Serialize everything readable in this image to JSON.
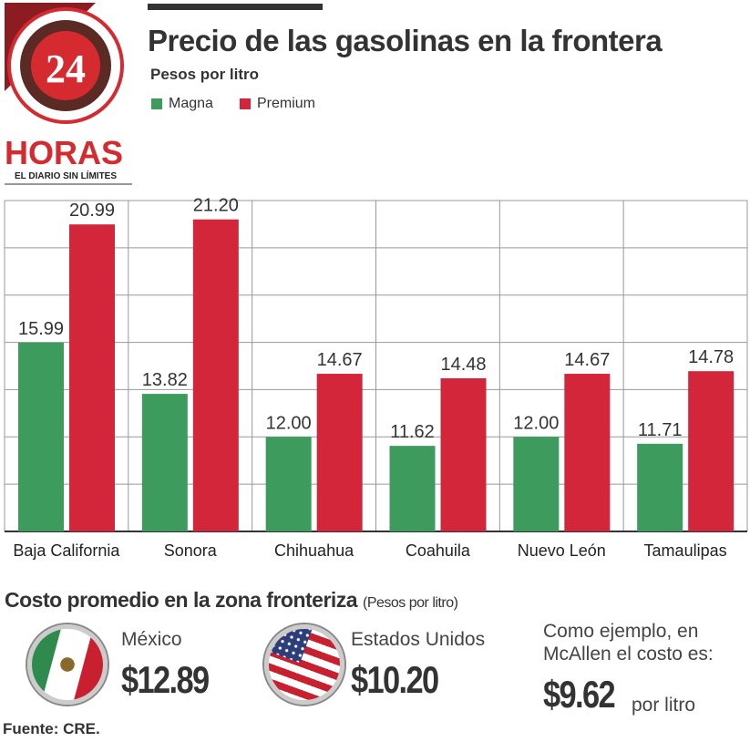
{
  "logo": {
    "number": "24",
    "name": "HORAS",
    "tagline": "EL DIARIO SIN LÍMITES"
  },
  "header": {
    "title": "Precio de las gasolinas en la frontera",
    "subtitle": "Pesos por litro"
  },
  "colors": {
    "magna": "#3d9b5e",
    "premium": "#d3263a"
  },
  "chart_data": {
    "type": "bar",
    "title": "Precio de las gasolinas en la frontera",
    "ylabel": "Pesos por litro",
    "ylim": [
      8,
      22
    ],
    "grid": true,
    "gridstep": 2,
    "legend": "top-left",
    "categories": [
      "Baja California",
      "Sonora",
      "Chihuahua",
      "Coahuila",
      "Nuevo León",
      "Tamaulipas"
    ],
    "series": [
      {
        "name": "Magna",
        "values": [
          15.99,
          13.82,
          12.0,
          11.62,
          12.0,
          11.71
        ],
        "labels": [
          "15.99",
          "13.82",
          "12.00",
          "11.62",
          "12.00",
          "11.71"
        ]
      },
      {
        "name": "Premium",
        "values": [
          20.99,
          21.2,
          14.67,
          14.48,
          14.67,
          14.78
        ],
        "labels": [
          "20.99",
          "21.20",
          "14.67",
          "14.48",
          "14.67",
          "14.78"
        ]
      }
    ]
  },
  "summary": {
    "title": "Costo promedio en la zona fronteriza",
    "unit": "(Pesos por litro)",
    "mexico": {
      "label": "México",
      "price": "$12.89"
    },
    "usa": {
      "label": "Estados Unidos",
      "price": "$10.20"
    },
    "example": {
      "text1": "Como ejemplo, en",
      "text2": "McAllen el costo es:",
      "price": "$9.62",
      "unit": "por litro"
    }
  },
  "source": "Fuente: CRE."
}
